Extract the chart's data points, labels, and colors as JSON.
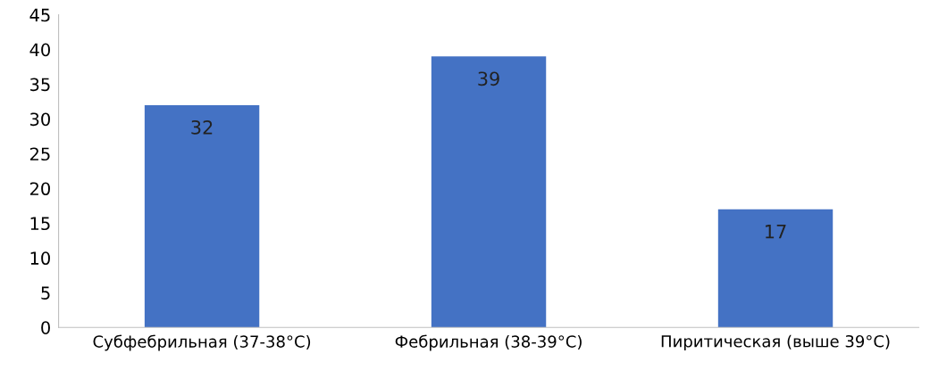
{
  "chart_data": {
    "type": "bar",
    "categories": [
      "Субфебрильная (37-38°C)",
      "Фебрильная (38-39°C)",
      "Пиритическая (выше 39°C)"
    ],
    "values": [
      32,
      39,
      17
    ],
    "data_labels": true,
    "color": "#4472c4",
    "ylim": [
      0,
      45
    ],
    "yticks": [
      0,
      5,
      10,
      15,
      20,
      25,
      30,
      35,
      40,
      45
    ],
    "grid": false
  }
}
